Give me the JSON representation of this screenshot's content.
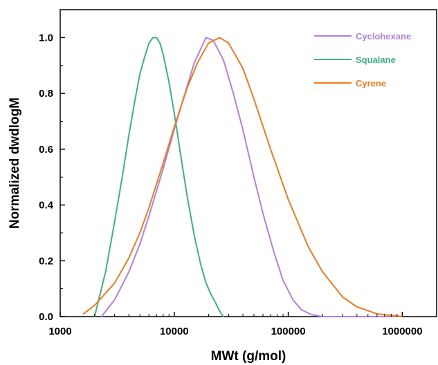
{
  "chart_data": {
    "type": "line",
    "title": "",
    "xlabel": "MWt (g/mol)",
    "ylabel": "Normalized dwdlogM",
    "x_scale": "log",
    "xlim": [
      1000,
      2000000
    ],
    "ylim": [
      0,
      1.1
    ],
    "x_ticks": [
      1000,
      10000,
      100000,
      1000000
    ],
    "x_tick_labels": [
      "1000",
      "10000",
      "100000",
      "1000000"
    ],
    "y_ticks": [
      0.0,
      0.2,
      0.4,
      0.6,
      0.8,
      1.0
    ],
    "y_tick_labels": [
      "0.0",
      "0.2",
      "0.4",
      "0.6",
      "0.8",
      "1.0"
    ],
    "grid": false,
    "legend_position": "top-right",
    "series": [
      {
        "name": "Cyclohexane",
        "color": "#b27fe0",
        "x": [
          2300,
          3000,
          4000,
          5000,
          6000,
          8000,
          10000,
          12000,
          15000,
          19000,
          22000,
          27000,
          33000,
          40000,
          50000,
          60000,
          75000,
          90000,
          110000,
          130000,
          160000,
          200000,
          300000,
          500000,
          1000000
        ],
        "y": [
          0.0,
          0.06,
          0.16,
          0.26,
          0.36,
          0.53,
          0.67,
          0.78,
          0.91,
          1.0,
          0.99,
          0.92,
          0.8,
          0.67,
          0.5,
          0.37,
          0.23,
          0.13,
          0.06,
          0.025,
          0.007,
          0.0,
          0.0,
          0.0,
          0.0
        ]
      },
      {
        "name": "Squalane",
        "color": "#3cb37a",
        "x": [
          2000,
          2500,
          3000,
          3500,
          4000,
          4500,
          5000,
          5500,
          6000,
          6500,
          7000,
          7500,
          8000,
          9000,
          10000,
          11000,
          12000,
          13000,
          15000,
          17000,
          19000,
          21000,
          23000,
          25000,
          27000
        ],
        "y": [
          0.0,
          0.16,
          0.34,
          0.5,
          0.65,
          0.77,
          0.87,
          0.93,
          0.98,
          1.0,
          1.0,
          0.98,
          0.94,
          0.84,
          0.73,
          0.62,
          0.52,
          0.43,
          0.29,
          0.19,
          0.12,
          0.08,
          0.05,
          0.02,
          0.0
        ]
      },
      {
        "name": "Cyrene",
        "color": "#f07a1a",
        "x": [
          1600,
          2000,
          3000,
          4000,
          5000,
          6000,
          8000,
          10000,
          13000,
          16000,
          20000,
          25000,
          30000,
          40000,
          50000,
          70000,
          100000,
          150000,
          200000,
          300000,
          400000,
          600000,
          1000000
        ],
        "y": [
          0.01,
          0.04,
          0.12,
          0.21,
          0.3,
          0.39,
          0.55,
          0.68,
          0.82,
          0.91,
          0.98,
          1.0,
          0.98,
          0.89,
          0.78,
          0.6,
          0.42,
          0.25,
          0.16,
          0.07,
          0.035,
          0.01,
          0.0
        ]
      }
    ]
  }
}
